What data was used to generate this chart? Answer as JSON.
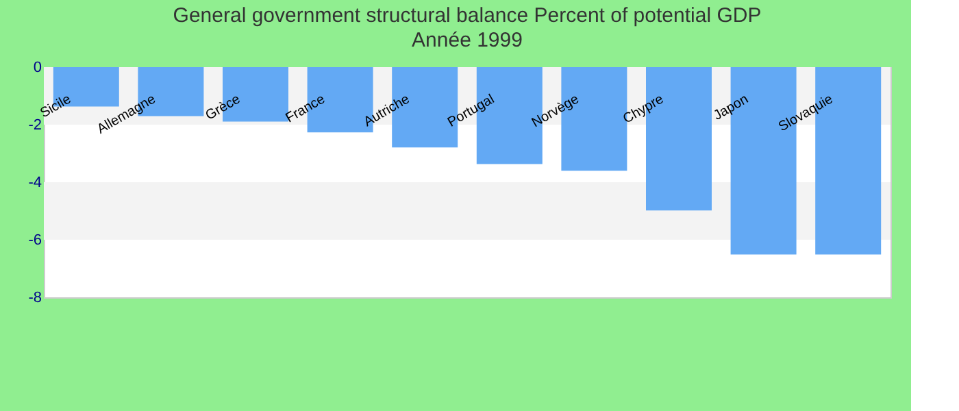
{
  "chart_data": {
    "type": "bar",
    "title": "General government structural balance  Percent of potential GDP",
    "subtitle": "Année 1999",
    "categories": [
      "Sicile",
      "Allemagne",
      "Grèce",
      "France",
      "Autriche",
      "Portugal",
      "Norvège",
      "Chypre",
      "Japon",
      "Slovaquie"
    ],
    "values": [
      -1.37,
      -1.7,
      -1.89,
      -2.27,
      -2.79,
      -3.37,
      -3.6,
      -4.98,
      -6.51,
      -6.51
    ],
    "color": "#63a9f4",
    "ylim": [
      -8,
      0
    ],
    "yticks": [
      0,
      -2,
      -4,
      -6,
      -8
    ],
    "bands": [
      {
        "axis": "y",
        "from": 0,
        "to": -2,
        "color": "#f3f3f3"
      },
      {
        "axis": "y",
        "from": -4,
        "to": -6,
        "color": "#f3f3f3"
      }
    ]
  }
}
